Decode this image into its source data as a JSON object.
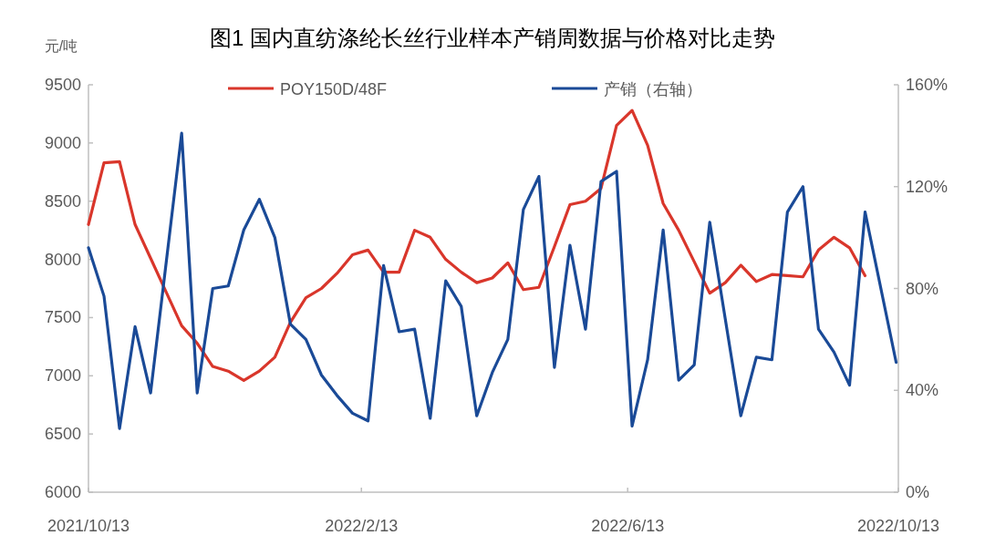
{
  "chart_data": {
    "type": "line",
    "title": "图1 国内直纺涤纶长丝行业样本产销周数据与价格对比走势",
    "ylabel": "元/吨",
    "xlim": [
      "2021-10-13",
      "2022-10-13"
    ],
    "xticks": [
      {
        "value": "2021-10-13",
        "label": "2021/10/13"
      },
      {
        "value": "2022-02-13",
        "label": "2022/2/13"
      },
      {
        "value": "2022-06-13",
        "label": "2022/6/13"
      },
      {
        "value": "2022-10-13",
        "label": "2022/10/13"
      }
    ],
    "ylim": [
      6000,
      9500
    ],
    "yticks": [
      6000,
      6500,
      7000,
      7500,
      8000,
      8500,
      9000,
      9500
    ],
    "y2lim": [
      0,
      160
    ],
    "y2ticks": [
      {
        "value": 0,
        "label": "0%"
      },
      {
        "value": 40,
        "label": "40%"
      },
      {
        "value": 80,
        "label": "80%"
      },
      {
        "value": 120,
        "label": "120%"
      },
      {
        "value": 160,
        "label": "160%"
      }
    ],
    "legend": "top",
    "series": [
      {
        "name": "POY150D/48F",
        "color": "#d9362b",
        "x": [
          "2021-10-13",
          "2021-10-20",
          "2021-10-27",
          "2021-11-03",
          "2021-11-10",
          "2021-11-17",
          "2021-11-24",
          "2021-12-01",
          "2021-12-08",
          "2021-12-15",
          "2021-12-22",
          "2021-12-29",
          "2022-01-05",
          "2022-01-12",
          "2022-01-19",
          "2022-01-26",
          "2022-02-02",
          "2022-02-09",
          "2022-02-16",
          "2022-02-23",
          "2022-03-02",
          "2022-03-09",
          "2022-03-16",
          "2022-03-23",
          "2022-03-30",
          "2022-04-06",
          "2022-04-13",
          "2022-04-20",
          "2022-04-27",
          "2022-05-04",
          "2022-05-11",
          "2022-05-18",
          "2022-05-25",
          "2022-06-01",
          "2022-06-08",
          "2022-06-15",
          "2022-06-22",
          "2022-06-29",
          "2022-07-06",
          "2022-07-13",
          "2022-07-20",
          "2022-07-27",
          "2022-08-03",
          "2022-08-10",
          "2022-08-17",
          "2022-08-24",
          "2022-08-31",
          "2022-09-07",
          "2022-09-14",
          "2022-09-21",
          "2022-09-28"
        ],
        "values": [
          8300,
          8830,
          8840,
          8300,
          8010,
          7720,
          7430,
          7280,
          7080,
          7040,
          6960,
          7040,
          7160,
          7460,
          7670,
          7750,
          7880,
          8040,
          8080,
          7890,
          7890,
          8250,
          8190,
          8000,
          7890,
          7800,
          7840,
          7970,
          7740,
          7760,
          8110,
          8470,
          8500,
          8610,
          9150,
          9280,
          8980,
          8480,
          8250,
          7980,
          7710,
          7800,
          7950,
          7810,
          7870,
          7860,
          7850,
          8080,
          8190,
          8100,
          7860
        ]
      },
      {
        "name": "产销（右轴）",
        "color": "#1a4a97",
        "axis": "y2",
        "x": [
          "2021-10-13",
          "2021-10-20",
          "2021-10-27",
          "2021-11-03",
          "2021-11-10",
          "2021-11-24",
          "2021-12-01",
          "2021-12-08",
          "2021-12-15",
          "2021-12-22",
          "2021-12-29",
          "2022-01-05",
          "2022-01-12",
          "2022-01-19",
          "2022-01-26",
          "2022-02-02",
          "2022-02-09",
          "2022-02-16",
          "2022-02-23",
          "2022-03-02",
          "2022-03-09",
          "2022-03-16",
          "2022-03-23",
          "2022-03-30",
          "2022-04-06",
          "2022-04-13",
          "2022-04-20",
          "2022-04-27",
          "2022-05-04",
          "2022-05-11",
          "2022-05-18",
          "2022-05-25",
          "2022-06-01",
          "2022-06-08",
          "2022-06-15",
          "2022-06-22",
          "2022-06-29",
          "2022-07-06",
          "2022-07-13",
          "2022-07-20",
          "2022-08-03",
          "2022-08-10",
          "2022-08-17",
          "2022-08-24",
          "2022-08-31",
          "2022-09-07",
          "2022-09-14",
          "2022-09-21",
          "2022-09-28",
          "2022-10-12"
        ],
        "values": [
          96,
          77,
          25,
          65,
          39,
          141,
          39,
          80,
          81,
          103,
          115,
          100,
          66,
          60,
          46,
          38,
          31,
          28,
          89,
          63,
          64,
          29,
          83,
          73,
          30,
          47,
          60,
          111,
          124,
          49,
          97,
          64,
          122,
          126,
          26,
          52,
          103,
          44,
          50,
          106,
          30,
          53,
          52,
          110,
          120,
          64,
          55,
          42,
          110,
          51
        ]
      }
    ]
  }
}
